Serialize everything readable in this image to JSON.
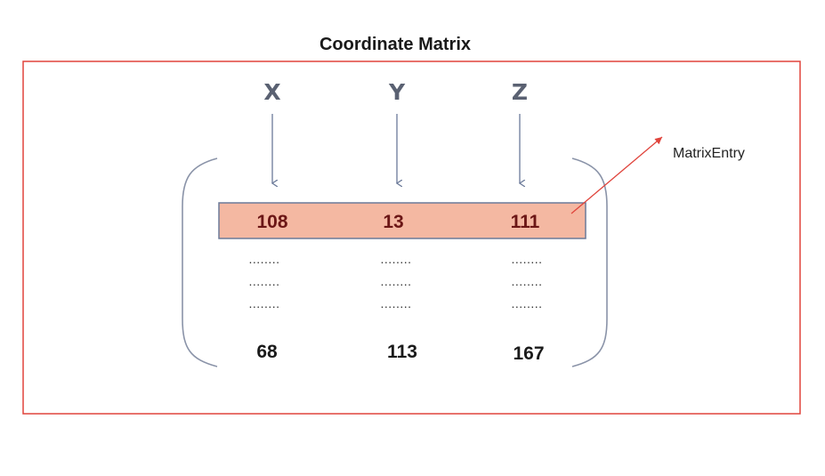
{
  "title": "Coordinate Matrix",
  "columns": [
    "X",
    "Y",
    "Z"
  ],
  "first_entry": [
    "108",
    "13",
    "111"
  ],
  "ellipsis": "........",
  "last_entry": [
    "68",
    "113",
    "167"
  ],
  "callout_label": "MatrixEntry",
  "colors": {
    "frame": "#e0443c",
    "entry_fill": "#f4b8a2",
    "entry_border": "#6b7a99",
    "arrow": "#6b7a99",
    "callout_arrow": "#e0443c",
    "bracket": "#8a93a8"
  }
}
